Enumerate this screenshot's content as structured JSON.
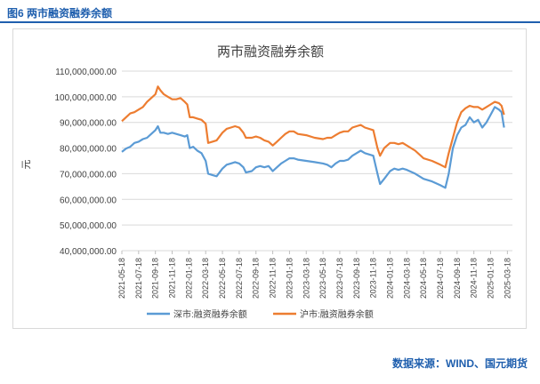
{
  "figure": {
    "caption": "图6 两市融资融券余额",
    "source": "数据来源：WIND、国元期货"
  },
  "colors": {
    "shenzhen": "#5b9bd5",
    "shanghai": "#ed7d31",
    "accent": "#1f5fae",
    "grid": "#d9d9d9"
  },
  "chart_data": {
    "type": "line",
    "title": "两市融资融券余额",
    "ylabel": "元",
    "ylim": [
      40000000000,
      110000000000
    ],
    "yticks": [
      {
        "value": 40000000000,
        "label": "40,000,000.00"
      },
      {
        "value": 50000000000,
        "label": "50,000,000.00"
      },
      {
        "value": 60000000000,
        "label": "60,000,000.00"
      },
      {
        "value": 70000000000,
        "label": "70,000,000.00"
      },
      {
        "value": 80000000000,
        "label": "80,000,000.00"
      },
      {
        "value": 90000000000,
        "label": "90,000,000.00"
      },
      {
        "value": 100000000000,
        "label": "100,000,000.00"
      },
      {
        "value": 110000000000,
        "label": "110,000,000.00"
      }
    ],
    "xticks": [
      "2021-05-18",
      "2021-07-18",
      "2021-09-18",
      "2021-11-18",
      "2022-01-18",
      "2022-03-18",
      "2022-05-18",
      "2022-07-18",
      "2022-09-18",
      "2022-11-18",
      "2023-01-18",
      "2023-03-18",
      "2023-05-18",
      "2023-07-18",
      "2023-09-18",
      "2023-11-18",
      "2024-01-18",
      "2024-03-18",
      "2024-05-18",
      "2024-07-18",
      "2024-09-18",
      "2024-11-18",
      "2025-01-18",
      "2025-03-18"
    ],
    "x_unit": "months since 2021-05-18",
    "legend_position": "bottom",
    "grid": true,
    "series": [
      {
        "name": "深市:融资融券余额",
        "color": "#5b9bd5",
        "points": [
          [
            0,
            78.5
          ],
          [
            0.5,
            79.8
          ],
          [
            1,
            80.5
          ],
          [
            1.5,
            82
          ],
          [
            2,
            82.5
          ],
          [
            2.5,
            83.5
          ],
          [
            3,
            84
          ],
          [
            3.5,
            85.5
          ],
          [
            4,
            87
          ],
          [
            4.3,
            88.5
          ],
          [
            4.6,
            86
          ],
          [
            5,
            86
          ],
          [
            5.5,
            85.5
          ],
          [
            6,
            86
          ],
          [
            6.5,
            85.5
          ],
          [
            7,
            85
          ],
          [
            7.5,
            84.5
          ],
          [
            7.8,
            85
          ],
          [
            8.1,
            80
          ],
          [
            8.5,
            80.5
          ],
          [
            9,
            79
          ],
          [
            9.5,
            78
          ],
          [
            10,
            75
          ],
          [
            10.3,
            70
          ],
          [
            10.8,
            69.5
          ],
          [
            11.3,
            69
          ],
          [
            12,
            72
          ],
          [
            12.5,
            73.5
          ],
          [
            13,
            74
          ],
          [
            13.5,
            74.5
          ],
          [
            14,
            74
          ],
          [
            14.5,
            72.5
          ],
          [
            14.8,
            70.5
          ],
          [
            15.5,
            71
          ],
          [
            16,
            72.5
          ],
          [
            16.5,
            73
          ],
          [
            17,
            72.5
          ],
          [
            17.5,
            73
          ],
          [
            18,
            71
          ],
          [
            18.5,
            72.5
          ],
          [
            19,
            74
          ],
          [
            19.5,
            75
          ],
          [
            20,
            76
          ],
          [
            20.5,
            76
          ],
          [
            21,
            75.5
          ],
          [
            22,
            75
          ],
          [
            23,
            74.5
          ],
          [
            24,
            74
          ],
          [
            24.5,
            73.5
          ],
          [
            25,
            72.5
          ],
          [
            25.5,
            74
          ],
          [
            26,
            75
          ],
          [
            26.5,
            75
          ],
          [
            27,
            75.5
          ],
          [
            27.5,
            77
          ],
          [
            28,
            78
          ],
          [
            28.5,
            79
          ],
          [
            29,
            78
          ],
          [
            30,
            77
          ],
          [
            30.5,
            70
          ],
          [
            30.8,
            66
          ],
          [
            31.3,
            68
          ],
          [
            32,
            71
          ],
          [
            32.5,
            72
          ],
          [
            33,
            71.5
          ],
          [
            33.5,
            72
          ],
          [
            34,
            71.5
          ],
          [
            35,
            70
          ],
          [
            36,
            68
          ],
          [
            37,
            67
          ],
          [
            38,
            65.5
          ],
          [
            38.6,
            64.5
          ],
          [
            39.0,
            70
          ],
          [
            39.5,
            80
          ],
          [
            40,
            85
          ],
          [
            40.5,
            88
          ],
          [
            41,
            89
          ],
          [
            41.5,
            92
          ],
          [
            42,
            90
          ],
          [
            42.5,
            91
          ],
          [
            43,
            88
          ],
          [
            43.5,
            90
          ],
          [
            44,
            93
          ],
          [
            44.5,
            96
          ],
          [
            45,
            95
          ],
          [
            45.3,
            94
          ],
          [
            45.6,
            88
          ]
        ]
      },
      {
        "name": "沪市:融资融券余额",
        "color": "#ed7d31",
        "points": [
          [
            0,
            90.5
          ],
          [
            0.5,
            92
          ],
          [
            1,
            93.5
          ],
          [
            1.5,
            94
          ],
          [
            2,
            95
          ],
          [
            2.5,
            96
          ],
          [
            3,
            98
          ],
          [
            3.5,
            99.5
          ],
          [
            4,
            101
          ],
          [
            4.3,
            104
          ],
          [
            4.6,
            102.5
          ],
          [
            5,
            101
          ],
          [
            5.5,
            100
          ],
          [
            6,
            99
          ],
          [
            6.5,
            99
          ],
          [
            7,
            99.5
          ],
          [
            7.5,
            98
          ],
          [
            7.8,
            97
          ],
          [
            8.1,
            92
          ],
          [
            8.5,
            92
          ],
          [
            9,
            91.5
          ],
          [
            9.5,
            91
          ],
          [
            10,
            89.5
          ],
          [
            10.3,
            82
          ],
          [
            10.8,
            82.5
          ],
          [
            11.3,
            83
          ],
          [
            12,
            86
          ],
          [
            12.5,
            87.5
          ],
          [
            13,
            88
          ],
          [
            13.5,
            88.5
          ],
          [
            14,
            88
          ],
          [
            14.5,
            86
          ],
          [
            14.8,
            84
          ],
          [
            15.5,
            84
          ],
          [
            16,
            84.5
          ],
          [
            16.5,
            84
          ],
          [
            17,
            83
          ],
          [
            17.5,
            82.5
          ],
          [
            18,
            81
          ],
          [
            18.5,
            82.5
          ],
          [
            19,
            84
          ],
          [
            19.5,
            85.5
          ],
          [
            20,
            86.5
          ],
          [
            20.5,
            86.5
          ],
          [
            21,
            85.5
          ],
          [
            22,
            85
          ],
          [
            23,
            84
          ],
          [
            24,
            83.5
          ],
          [
            24.5,
            84
          ],
          [
            25,
            84
          ],
          [
            25.5,
            85
          ],
          [
            26,
            86
          ],
          [
            26.5,
            86.5
          ],
          [
            27,
            86.5
          ],
          [
            27.5,
            88
          ],
          [
            28,
            88.5
          ],
          [
            28.5,
            89
          ],
          [
            29,
            88
          ],
          [
            30,
            87
          ],
          [
            30.5,
            80
          ],
          [
            30.8,
            77
          ],
          [
            31.3,
            80
          ],
          [
            32,
            82
          ],
          [
            32.5,
            82
          ],
          [
            33,
            81.5
          ],
          [
            33.5,
            82
          ],
          [
            34,
            81
          ],
          [
            35,
            79
          ],
          [
            36,
            76
          ],
          [
            37,
            75
          ],
          [
            38,
            73.5
          ],
          [
            38.6,
            72.5
          ],
          [
            39.0,
            78
          ],
          [
            39.5,
            84
          ],
          [
            40,
            90
          ],
          [
            40.5,
            94
          ],
          [
            41,
            95.5
          ],
          [
            41.5,
            96.5
          ],
          [
            42,
            96
          ],
          [
            42.5,
            96
          ],
          [
            43,
            95
          ],
          [
            43.5,
            96
          ],
          [
            44,
            97
          ],
          [
            44.5,
            98
          ],
          [
            45,
            97.5
          ],
          [
            45.3,
            96.5
          ],
          [
            45.6,
            93
          ]
        ]
      }
    ]
  }
}
